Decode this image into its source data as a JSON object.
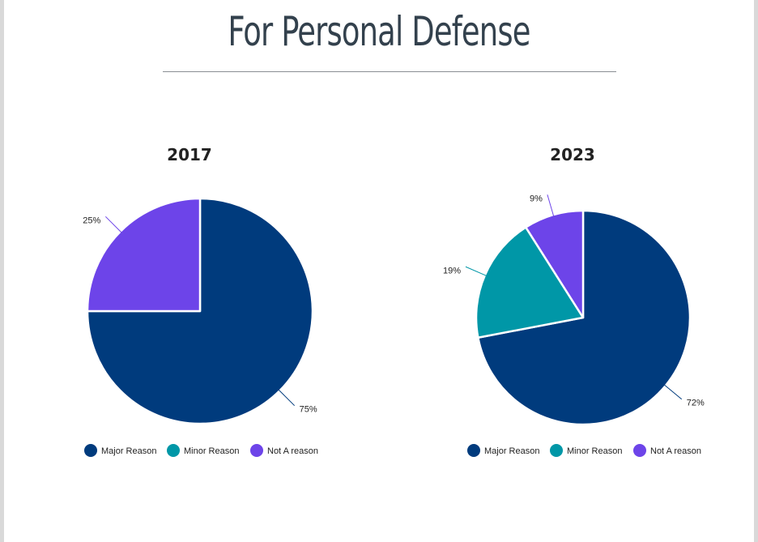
{
  "page": {
    "title": "For Personal Defense"
  },
  "colors": {
    "major": "#003b7d",
    "minor": "#0097a7",
    "not": "#6d44e9"
  },
  "chart_data": [
    {
      "type": "pie",
      "title": "2017",
      "categories": [
        "Major Reason",
        "Minor Reason",
        "Not A reason"
      ],
      "values": [
        75,
        0,
        25
      ],
      "data_labels": [
        "75%",
        "",
        "25%"
      ],
      "colors": [
        "#003b7d",
        "#0097a7",
        "#6d44e9"
      ],
      "legend": "bottom"
    },
    {
      "type": "pie",
      "title": "2023",
      "categories": [
        "Major Reason",
        "Minor Reason",
        "Not A reason"
      ],
      "values": [
        72,
        19,
        9
      ],
      "data_labels": [
        "72%",
        "19%",
        "9%"
      ],
      "colors": [
        "#003b7d",
        "#0097a7",
        "#6d44e9"
      ],
      "legend": "bottom"
    }
  ]
}
